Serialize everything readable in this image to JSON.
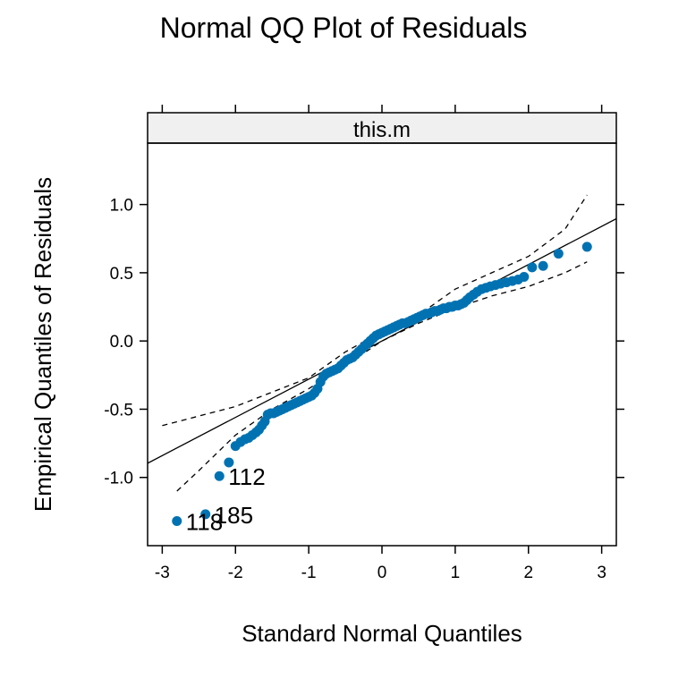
{
  "chart_data": {
    "type": "scatter",
    "title": "Normal QQ Plot of Residuals",
    "xlabel": "Standard Normal Quantiles",
    "ylabel": "Empirical Quantiles of Residuals",
    "panel_label": "this.m",
    "xlim": [
      -3.2,
      3.2
    ],
    "ylim": [
      -1.5,
      1.45
    ],
    "xticks": [
      -3,
      -2,
      -1,
      0,
      1,
      2,
      3
    ],
    "xtick_labels": [
      "-3",
      "-2",
      "-1",
      "0",
      "1",
      "2",
      "3"
    ],
    "yticks": [
      -1.0,
      -0.5,
      0.0,
      0.5,
      1.0
    ],
    "ytick_labels": [
      "-1.0",
      "-0.5",
      "0.0",
      "0.5",
      "1.0"
    ],
    "grid": false,
    "point_color": "#0072B2",
    "reference_line": {
      "intercept": 0.0,
      "slope": 0.28
    },
    "points": [
      [
        -2.8,
        -1.32
      ],
      [
        -2.41,
        -1.27
      ],
      [
        -2.22,
        -0.99
      ],
      [
        -2.09,
        -0.89
      ],
      [
        -2.0,
        -0.77
      ],
      [
        -1.93,
        -0.74
      ],
      [
        -1.87,
        -0.72
      ],
      [
        -1.82,
        -0.71
      ],
      [
        -1.77,
        -0.69
      ],
      [
        -1.72,
        -0.67
      ],
      [
        -1.68,
        -0.65
      ],
      [
        -1.64,
        -0.62
      ],
      [
        -1.6,
        -0.59
      ],
      [
        -1.56,
        -0.54
      ],
      [
        -1.52,
        -0.53
      ],
      [
        -1.48,
        -0.53
      ],
      [
        -1.44,
        -0.52
      ],
      [
        -1.4,
        -0.51
      ],
      [
        -1.36,
        -0.5
      ],
      [
        -1.32,
        -0.49
      ],
      [
        -1.28,
        -0.48
      ],
      [
        -1.24,
        -0.47
      ],
      [
        -1.2,
        -0.46
      ],
      [
        -1.16,
        -0.45
      ],
      [
        -1.12,
        -0.44
      ],
      [
        -1.08,
        -0.43
      ],
      [
        -1.04,
        -0.42
      ],
      [
        -1.0,
        -0.41
      ],
      [
        -0.96,
        -0.4
      ],
      [
        -0.92,
        -0.38
      ],
      [
        -0.88,
        -0.35
      ],
      [
        -0.84,
        -0.3
      ],
      [
        -0.8,
        -0.26
      ],
      [
        -0.76,
        -0.24
      ],
      [
        -0.72,
        -0.23
      ],
      [
        -0.68,
        -0.22
      ],
      [
        -0.64,
        -0.21
      ],
      [
        -0.6,
        -0.2
      ],
      [
        -0.56,
        -0.18
      ],
      [
        -0.52,
        -0.16
      ],
      [
        -0.48,
        -0.14
      ],
      [
        -0.44,
        -0.13
      ],
      [
        -0.4,
        -0.12
      ],
      [
        -0.36,
        -0.1
      ],
      [
        -0.32,
        -0.08
      ],
      [
        -0.28,
        -0.06
      ],
      [
        -0.24,
        -0.04
      ],
      [
        -0.2,
        -0.02
      ],
      [
        -0.16,
        0.0
      ],
      [
        -0.12,
        0.02
      ],
      [
        -0.08,
        0.04
      ],
      [
        -0.04,
        0.05
      ],
      [
        0.0,
        0.06
      ],
      [
        0.04,
        0.07
      ],
      [
        0.08,
        0.08
      ],
      [
        0.12,
        0.09
      ],
      [
        0.16,
        0.1
      ],
      [
        0.2,
        0.11
      ],
      [
        0.24,
        0.12
      ],
      [
        0.28,
        0.13
      ],
      [
        0.32,
        0.13
      ],
      [
        0.36,
        0.14
      ],
      [
        0.4,
        0.15
      ],
      [
        0.44,
        0.16
      ],
      [
        0.48,
        0.17
      ],
      [
        0.52,
        0.18
      ],
      [
        0.56,
        0.19
      ],
      [
        0.6,
        0.2
      ],
      [
        0.64,
        0.2
      ],
      [
        0.68,
        0.21
      ],
      [
        0.72,
        0.22
      ],
      [
        0.76,
        0.22
      ],
      [
        0.8,
        0.23
      ],
      [
        0.84,
        0.24
      ],
      [
        0.88,
        0.24
      ],
      [
        0.92,
        0.25
      ],
      [
        0.96,
        0.25
      ],
      [
        1.0,
        0.26
      ],
      [
        1.04,
        0.26
      ],
      [
        1.08,
        0.27
      ],
      [
        1.12,
        0.28
      ],
      [
        1.16,
        0.3
      ],
      [
        1.2,
        0.32
      ],
      [
        1.25,
        0.34
      ],
      [
        1.3,
        0.36
      ],
      [
        1.36,
        0.38
      ],
      [
        1.42,
        0.39
      ],
      [
        1.48,
        0.4
      ],
      [
        1.55,
        0.41
      ],
      [
        1.62,
        0.42
      ],
      [
        1.7,
        0.43
      ],
      [
        1.78,
        0.44
      ],
      [
        1.86,
        0.45
      ],
      [
        1.94,
        0.47
      ],
      [
        2.05,
        0.54
      ],
      [
        2.2,
        0.55
      ],
      [
        2.41,
        0.64
      ],
      [
        2.8,
        0.69
      ]
    ],
    "envelope_upper": [
      [
        -3.0,
        -0.62
      ],
      [
        -2.0,
        -0.48
      ],
      [
        -1.0,
        -0.27
      ],
      [
        -0.5,
        -0.08
      ],
      [
        0.0,
        0.07
      ],
      [
        0.5,
        0.19
      ],
      [
        1.0,
        0.38
      ],
      [
        1.5,
        0.5
      ],
      [
        2.0,
        0.62
      ],
      [
        2.5,
        0.82
      ],
      [
        2.8,
        1.07
      ]
    ],
    "envelope_lower": [
      [
        -2.8,
        -1.1
      ],
      [
        -2.5,
        -0.95
      ],
      [
        -2.0,
        -0.69
      ],
      [
        -1.5,
        -0.5
      ],
      [
        -1.0,
        -0.35
      ],
      [
        -0.5,
        -0.18
      ],
      [
        0.0,
        0.0
      ],
      [
        0.5,
        0.13
      ],
      [
        1.0,
        0.24
      ],
      [
        1.5,
        0.33
      ],
      [
        2.0,
        0.4
      ],
      [
        2.5,
        0.5
      ],
      [
        2.8,
        0.58
      ]
    ],
    "point_labels": [
      {
        "x": -2.8,
        "y": -1.32,
        "label": "118"
      },
      {
        "x": -2.41,
        "y": -1.27,
        "label": "185"
      },
      {
        "x": -2.22,
        "y": -0.99,
        "label": "112"
      }
    ]
  }
}
